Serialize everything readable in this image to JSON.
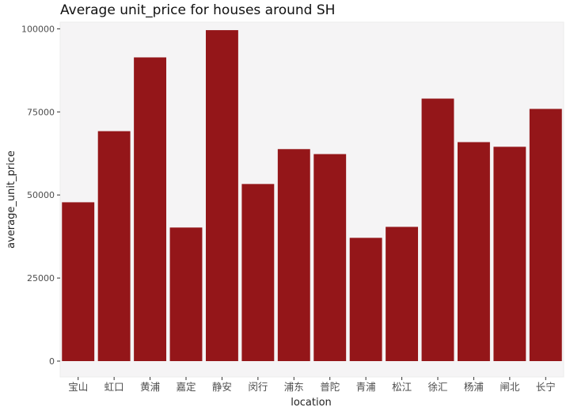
{
  "chart_data": {
    "type": "bar",
    "title": "Average unit_price for houses around SH",
    "xlabel": "location",
    "ylabel": "average_unit_price",
    "categories": [
      "宝山",
      "虹口",
      "黄浦",
      "嘉定",
      "静安",
      "闵行",
      "浦东",
      "普陀",
      "青浦",
      "松江",
      "徐汇",
      "杨浦",
      "闸北",
      "长宁"
    ],
    "values": [
      47800,
      69200,
      91400,
      40200,
      99600,
      53300,
      63800,
      62300,
      37100,
      40400,
      79000,
      65900,
      64500,
      75900
    ],
    "ylim": [
      0,
      102000
    ],
    "yticks": [
      0,
      25000,
      50000,
      75000,
      100000
    ],
    "ytick_labels": [
      "0",
      "25000",
      "50000",
      "75000",
      "100000"
    ],
    "grid": false,
    "colors": {
      "bar": "#941619",
      "panel": "#f5f4f5",
      "panel_border": "#ececec",
      "axis": "#333333"
    }
  }
}
